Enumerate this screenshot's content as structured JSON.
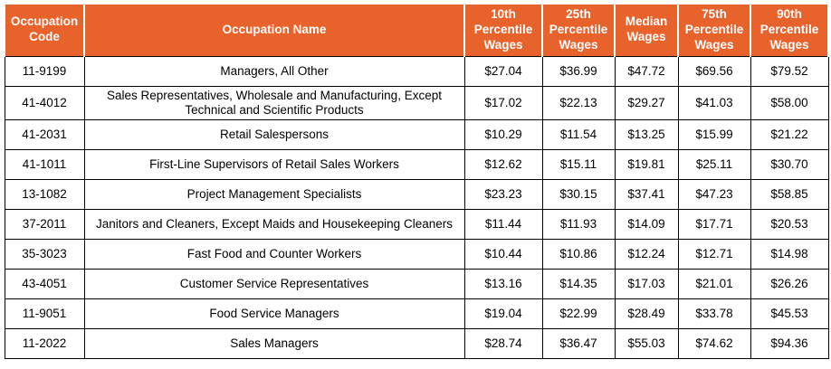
{
  "colors": {
    "header_bg": "#E8622C",
    "header_text": "#FFFFFF",
    "body_text": "#000000",
    "border": "#000000"
  },
  "chart_data": {
    "type": "table",
    "columns": [
      "Occupation Code",
      "Occupation Name",
      "10th Percentile Wages",
      "25th Percentile Wages",
      "Median Wages",
      "75th Percentile Wages",
      "90th Percentile Wages"
    ],
    "rows": [
      [
        "11-9199",
        "Managers, All Other",
        "$27.04",
        "$36.99",
        "$47.72",
        "$69.56",
        "$79.52"
      ],
      [
        "41-4012",
        "Sales Representatives, Wholesale and Manufacturing, Except Technical and Scientific Products",
        "$17.02",
        "$22.13",
        "$29.27",
        "$41.03",
        "$58.00"
      ],
      [
        "41-2031",
        "Retail Salespersons",
        "$10.29",
        "$11.54",
        "$13.25",
        "$15.99",
        "$21.22"
      ],
      [
        "41-1011",
        "First-Line Supervisors of Retail Sales Workers",
        "$12.62",
        "$15.11",
        "$19.81",
        "$25.11",
        "$30.70"
      ],
      [
        "13-1082",
        "Project Management Specialists",
        "$23.23",
        "$30.15",
        "$37.41",
        "$47.23",
        "$58.85"
      ],
      [
        "37-2011",
        "Janitors and Cleaners, Except Maids and Housekeeping Cleaners",
        "$11.44",
        "$11.93",
        "$14.09",
        "$17.71",
        "$20.53"
      ],
      [
        "35-3023",
        "Fast Food and Counter Workers",
        "$10.44",
        "$10.86",
        "$12.24",
        "$12.71",
        "$14.98"
      ],
      [
        "43-4051",
        "Customer Service Representatives",
        "$13.16",
        "$14.35",
        "$17.03",
        "$21.01",
        "$26.26"
      ],
      [
        "11-9051",
        "Food Service Managers",
        "$19.04",
        "$22.99",
        "$28.49",
        "$33.78",
        "$45.53"
      ],
      [
        "11-2022",
        "Sales Managers",
        "$28.74",
        "$36.47",
        "$55.03",
        "$74.62",
        "$94.36"
      ]
    ]
  }
}
